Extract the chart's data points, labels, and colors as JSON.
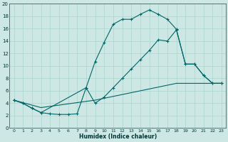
{
  "xlabel": "Humidex (Indice chaleur)",
  "background_color": "#cde8e4",
  "grid_color": "#aad4cc",
  "line_color": "#006666",
  "xlim": [
    -0.5,
    23.5
  ],
  "ylim": [
    0,
    20
  ],
  "xticks": [
    0,
    1,
    2,
    3,
    4,
    5,
    6,
    7,
    8,
    9,
    10,
    11,
    12,
    13,
    14,
    15,
    16,
    17,
    18,
    19,
    20,
    21,
    22,
    23
  ],
  "yticks": [
    0,
    2,
    4,
    6,
    8,
    10,
    12,
    14,
    16,
    18,
    20
  ],
  "line1_x": [
    0,
    1,
    2,
    3,
    4,
    5,
    6,
    7,
    8,
    9,
    10,
    11,
    12,
    13,
    14,
    15,
    16,
    17,
    18,
    19,
    20,
    21,
    22,
    23
  ],
  "line1_y": [
    4.5,
    4.0,
    3.2,
    2.5,
    2.3,
    2.2,
    2.2,
    2.3,
    6.5,
    10.7,
    13.8,
    16.7,
    17.5,
    17.5,
    18.3,
    19.0,
    18.3,
    17.5,
    15.9,
    10.3,
    10.3,
    8.5,
    7.2,
    7.2
  ],
  "line2_x": [
    0,
    1,
    2,
    3,
    8,
    9,
    10,
    11,
    12,
    13,
    14,
    15,
    16,
    17,
    18,
    19,
    20,
    21,
    22,
    23
  ],
  "line2_y": [
    4.5,
    4.0,
    3.2,
    2.5,
    6.5,
    4.0,
    5.0,
    6.5,
    8.0,
    9.5,
    11.0,
    12.5,
    14.2,
    14.0,
    15.8,
    10.3,
    10.3,
    8.5,
    7.2,
    7.2
  ],
  "line3_x": [
    0,
    1,
    2,
    3,
    4,
    5,
    6,
    7,
    8,
    9,
    10,
    11,
    12,
    13,
    14,
    15,
    16,
    17,
    18,
    19,
    20,
    21,
    22,
    23
  ],
  "line3_y": [
    4.5,
    4.1,
    3.7,
    3.3,
    3.5,
    3.7,
    3.9,
    4.1,
    4.3,
    4.5,
    4.8,
    5.1,
    5.4,
    5.7,
    6.0,
    6.3,
    6.6,
    6.9,
    7.2,
    7.2,
    7.2,
    7.2,
    7.2,
    7.2
  ]
}
